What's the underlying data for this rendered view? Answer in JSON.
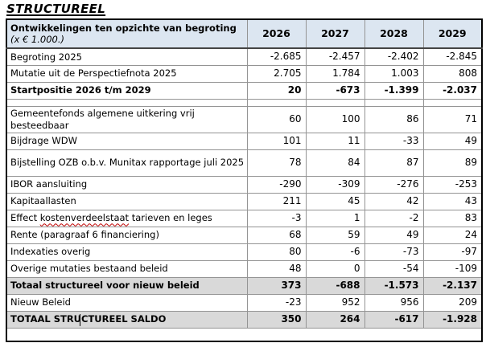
{
  "page_title": "STRUCTUREEL",
  "table": {
    "header": {
      "title": "Ontwikkelingen ten opzichte van begroting",
      "subtitle": "(x € 1.000.)",
      "years": [
        "2026",
        "2027",
        "2028",
        "2029"
      ]
    },
    "rows": [
      {
        "label": "Begroting 2025",
        "values": [
          "-2.685",
          "-2.457",
          "-2.402",
          "-2.845"
        ]
      },
      {
        "label": "Mutatie uit de Perspectiefnota 2025",
        "values": [
          "2.705",
          "1.784",
          "1.003",
          "808"
        ]
      },
      {
        "label": "Startpositie 2026 t/m 2029",
        "values": [
          "20",
          "-673",
          "-1.399",
          "-2.037"
        ]
      },
      {
        "label": "Gemeentefonds algemene uitkering vrij besteedbaar",
        "values": [
          "60",
          "100",
          "86",
          "71"
        ]
      },
      {
        "label": "Bijdrage WDW",
        "values": [
          "101",
          "11",
          "-33",
          "49"
        ]
      },
      {
        "label": "Bijstelling OZB o.b.v. Munitax rapportage juli 2025",
        "values": [
          "78",
          "84",
          "87",
          "89"
        ]
      },
      {
        "label": "IBOR aansluiting",
        "values": [
          "-290",
          "-309",
          "-276",
          "-253"
        ]
      },
      {
        "label": "Kapitaallasten",
        "values": [
          "211",
          "45",
          "42",
          "43"
        ]
      },
      {
        "label_parts": {
          "prefix": "Effect ",
          "misspelled": "kostenverdeelstaat",
          "suffix": " tarieven en leges"
        },
        "values": [
          "-3",
          "1",
          "-2",
          "83"
        ]
      },
      {
        "label": "Rente (paragraaf 6 financiering)",
        "values": [
          "68",
          "59",
          "49",
          "24"
        ]
      },
      {
        "label": "Indexaties overig",
        "values": [
          "80",
          "-6",
          "-73",
          "-97"
        ]
      },
      {
        "label": "Overige mutaties bestaand beleid",
        "values": [
          "48",
          "0",
          "-54",
          "-109"
        ]
      },
      {
        "label": "Totaal structureel voor nieuw beleid",
        "values": [
          "373",
          "-688",
          "-1.573",
          "-2.137"
        ]
      },
      {
        "label": "Nieuw Beleid",
        "values": [
          "-23",
          "952",
          "956",
          "209"
        ]
      },
      {
        "label": "TOTAAL STRUCTUREEL SALDO",
        "values": [
          "350",
          "264",
          "-617",
          "-1.928"
        ]
      }
    ],
    "colors": {
      "header_bg": "#dce6f1",
      "total_bg": "#d9d9d9",
      "grid": "#949494",
      "outer_border": "#000000",
      "spellcheck_underline": "#c00000"
    }
  }
}
